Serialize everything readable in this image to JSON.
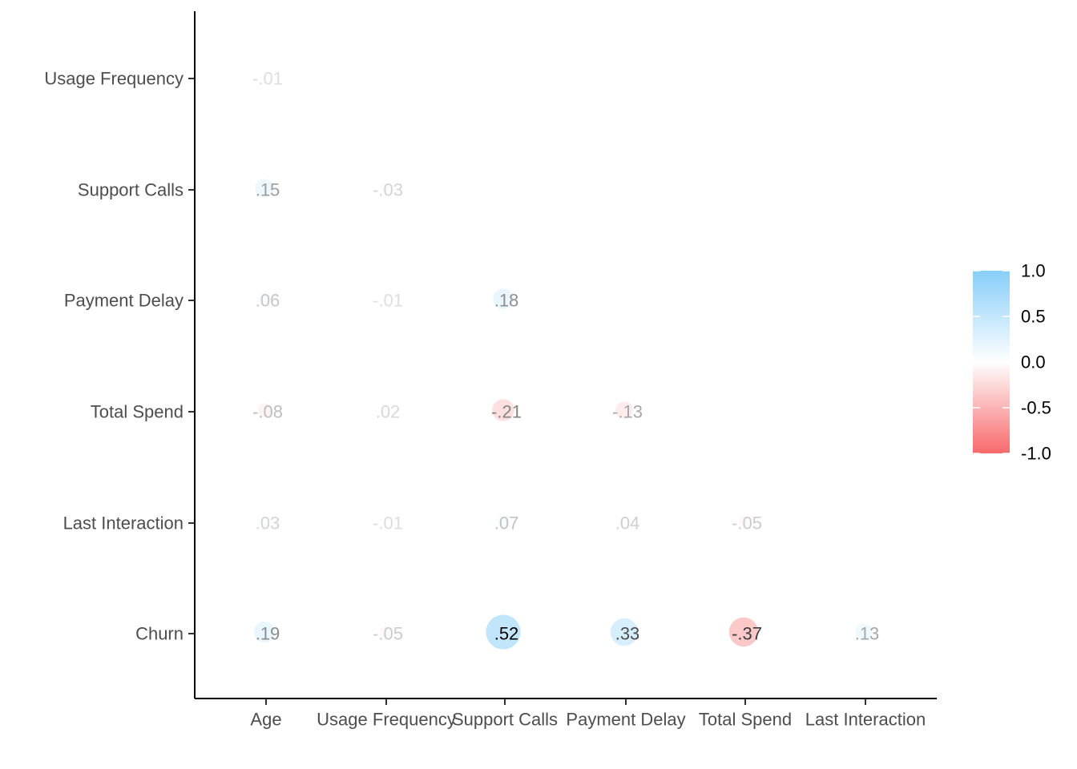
{
  "chart_data": {
    "type": "heatmap",
    "variant": "lower-triangle correlation matrix, circle size and color scaled by coefficient",
    "x_categories": [
      "Age",
      "Usage Frequency",
      "Support Calls",
      "Payment Delay",
      "Total Spend",
      "Last Interaction"
    ],
    "y_categories": [
      "Usage Frequency",
      "Support Calls",
      "Payment Delay",
      "Total Spend",
      "Last Interaction",
      "Churn"
    ],
    "cells": [
      {
        "x": "Age",
        "y": "Usage Frequency",
        "value": -0.01,
        "label": "-.01"
      },
      {
        "x": "Age",
        "y": "Support Calls",
        "value": 0.15,
        "label": ".15"
      },
      {
        "x": "Usage Frequency",
        "y": "Support Calls",
        "value": -0.03,
        "label": "-.03"
      },
      {
        "x": "Age",
        "y": "Payment Delay",
        "value": 0.06,
        "label": ".06"
      },
      {
        "x": "Usage Frequency",
        "y": "Payment Delay",
        "value": -0.01,
        "label": "-.01"
      },
      {
        "x": "Support Calls",
        "y": "Payment Delay",
        "value": 0.18,
        "label": ".18"
      },
      {
        "x": "Age",
        "y": "Total Spend",
        "value": -0.08,
        "label": "-.08"
      },
      {
        "x": "Usage Frequency",
        "y": "Total Spend",
        "value": 0.02,
        "label": ".02"
      },
      {
        "x": "Support Calls",
        "y": "Total Spend",
        "value": -0.21,
        "label": "-.21"
      },
      {
        "x": "Payment Delay",
        "y": "Total Spend",
        "value": -0.13,
        "label": "-.13"
      },
      {
        "x": "Age",
        "y": "Last Interaction",
        "value": 0.03,
        "label": ".03"
      },
      {
        "x": "Usage Frequency",
        "y": "Last Interaction",
        "value": -0.01,
        "label": "-.01"
      },
      {
        "x": "Support Calls",
        "y": "Last Interaction",
        "value": 0.07,
        "label": ".07"
      },
      {
        "x": "Payment Delay",
        "y": "Last Interaction",
        "value": 0.04,
        "label": ".04"
      },
      {
        "x": "Total Spend",
        "y": "Last Interaction",
        "value": -0.05,
        "label": "-.05"
      },
      {
        "x": "Age",
        "y": "Churn",
        "value": 0.19,
        "label": ".19"
      },
      {
        "x": "Usage Frequency",
        "y": "Churn",
        "value": -0.05,
        "label": "-.05"
      },
      {
        "x": "Support Calls",
        "y": "Churn",
        "value": 0.52,
        "label": ".52"
      },
      {
        "x": "Payment Delay",
        "y": "Churn",
        "value": 0.33,
        "label": ".33"
      },
      {
        "x": "Total Spend",
        "y": "Churn",
        "value": -0.37,
        "label": "-.37"
      },
      {
        "x": "Last Interaction",
        "y": "Churn",
        "value": 0.13,
        "label": ".13"
      }
    ],
    "color_scale": {
      "limits": [
        -1.0,
        1.0
      ],
      "low": "#f8696b",
      "mid": "#ffffff",
      "high": "#87cefa",
      "legend_labels": [
        "1.0",
        "0.5",
        "0.0",
        "-0.5",
        "-1.0"
      ],
      "legend_placement": "right"
    },
    "grid": false,
    "title": "",
    "xlabel": "",
    "ylabel": ""
  }
}
